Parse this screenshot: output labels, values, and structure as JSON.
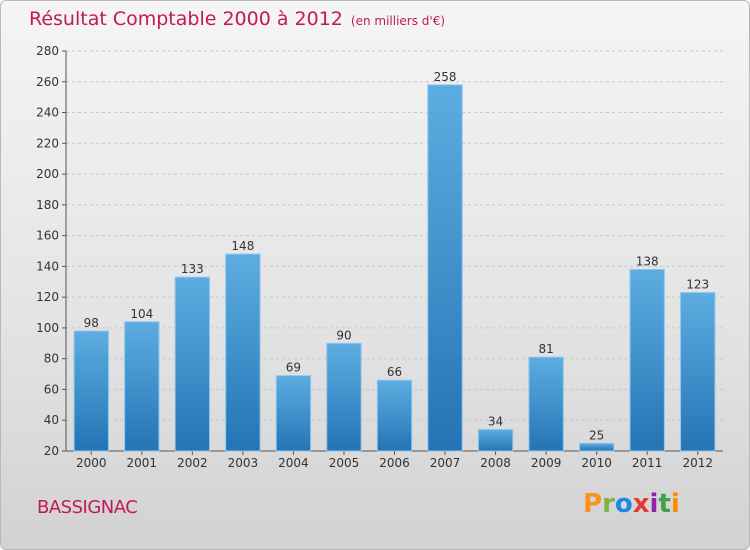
{
  "title": "Résultat Comptable 2000 à 2012",
  "unit_label": "(en milliers d'€)",
  "commune": "BASSIGNAC",
  "logo_text": "Proxiti",
  "colors": {
    "title": "#c2185b",
    "bar_light": "#5dade2",
    "bar_dark": "#2474b5"
  },
  "chart_data": {
    "type": "bar",
    "title": "Résultat Comptable 2000 à 2012",
    "subtitle": "(en milliers d'€)",
    "xlabel": "",
    "ylabel": "",
    "categories": [
      "2000",
      "2001",
      "2002",
      "2003",
      "2004",
      "2005",
      "2006",
      "2007",
      "2008",
      "2009",
      "2010",
      "2011",
      "2012"
    ],
    "values": [
      98,
      104,
      133,
      148,
      69,
      90,
      66,
      258,
      34,
      81,
      25,
      138,
      123
    ],
    "ylim": [
      20,
      280
    ],
    "yticks": [
      20,
      40,
      60,
      80,
      100,
      120,
      140,
      160,
      180,
      200,
      220,
      240,
      260,
      280
    ],
    "grid": true
  }
}
